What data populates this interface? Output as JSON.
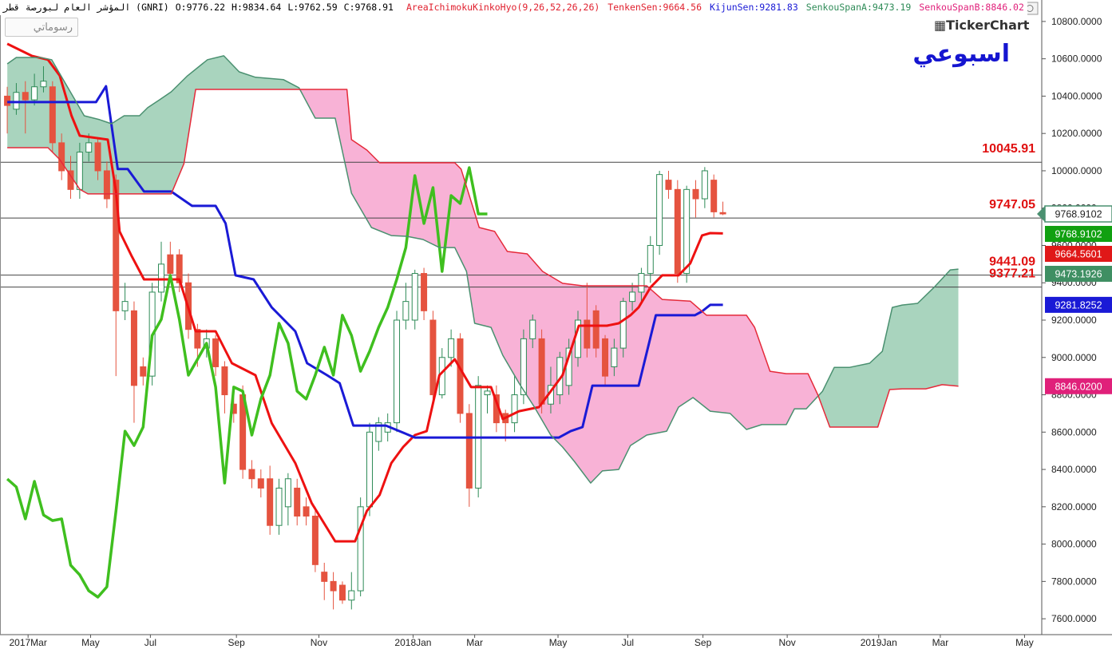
{
  "header": {
    "instrument": "المؤشر العام لبورصة قطر (GNRI)",
    "ohlc": [
      "O:9776.22",
      "H:9834.64",
      "L:9762.59",
      "C:9768.91"
    ],
    "indicators": [
      {
        "text": "AreaIchimokuKinkoHyo(9,26,52,26,26)",
        "color": "#e0202e"
      },
      {
        "text": "TenkenSen:9664.56",
        "color": "#e0202e"
      },
      {
        "text": "KijunSen:9281.83",
        "color": "#1a1ad6"
      },
      {
        "text": "SenkouSpanA:9473.19",
        "color": "#2e8b57"
      },
      {
        "text": "SenkouSpanB:8846.02",
        "color": "#e0207a"
      }
    ],
    "drawings_button": "رسوماتي",
    "logo": "TickerChart",
    "period": "اسبوعي"
  },
  "chart_data": {
    "type": "candlestick",
    "up_color": "#2e8b57",
    "down_color": "#e5533f",
    "candles": {
      "open": [
        10400,
        10330,
        10420,
        10380,
        10450,
        10450,
        10150,
        10000,
        9900,
        10100,
        10150,
        10000,
        9950,
        9250,
        9250,
        8950,
        8900,
        9350,
        9550,
        9550,
        9400,
        9150,
        9050,
        9100,
        8950,
        8750,
        8800,
        8400,
        8350,
        8350,
        8100,
        8200,
        8300,
        8200,
        8150,
        7850,
        7800,
        7780,
        7700,
        7750,
        8200,
        8550,
        8600,
        8650,
        9200,
        9200,
        9450,
        9200,
        8800,
        9000,
        9100,
        8700,
        8300,
        8800,
        8800,
        8700,
        8650,
        8800,
        9100,
        9100,
        8750,
        8800,
        8850,
        9000,
        9200,
        9250,
        9100,
        8950,
        9050,
        9300,
        9350,
        9450,
        9600,
        9950,
        9900,
        9450,
        9900,
        9850,
        9950,
        9776.22
      ],
      "high": [
        10450,
        10470,
        10480,
        10520,
        10560,
        10480,
        10200,
        10080,
        10150,
        10200,
        10180,
        10050,
        9980,
        9400,
        9300,
        9000,
        9400,
        9620,
        9620,
        9580,
        9450,
        9180,
        9150,
        9120,
        8980,
        8800,
        8850,
        8450,
        8400,
        8420,
        8350,
        8380,
        8350,
        8250,
        8200,
        7900,
        7850,
        7800,
        7850,
        8250,
        8650,
        8680,
        8700,
        9250,
        9400,
        9470,
        9480,
        9250,
        9050,
        9150,
        9130,
        8750,
        8900,
        8850,
        8850,
        8720,
        8900,
        9150,
        9230,
        9150,
        8950,
        9030,
        9100,
        9250,
        9400,
        9280,
        9120,
        9100,
        9320,
        9400,
        9480,
        9650,
        10000,
        10000,
        9950,
        9920,
        9950,
        10020,
        9980,
        9834.64
      ],
      "low": [
        10200,
        10300,
        10200,
        10350,
        10420,
        10100,
        9950,
        9850,
        9850,
        10050,
        9950,
        9800,
        8900,
        9200,
        8650,
        8850,
        8850,
        9300,
        9420,
        9350,
        9100,
        8950,
        9000,
        8900,
        8700,
        8650,
        8350,
        8300,
        8250,
        8050,
        8050,
        8100,
        8100,
        8100,
        7850,
        7700,
        7650,
        7680,
        7650,
        7720,
        8150,
        8500,
        8550,
        8600,
        9150,
        9150,
        9200,
        8750,
        8780,
        8950,
        8650,
        8200,
        8250,
        8700,
        8600,
        8550,
        8600,
        8750,
        9050,
        8700,
        8700,
        8750,
        8800,
        8950,
        9000,
        9000,
        8850,
        8900,
        9000,
        9250,
        9300,
        9400,
        9550,
        9850,
        9400,
        9400,
        9750,
        9800,
        9750,
        9762.59
      ],
      "close": [
        10350,
        10420,
        10380,
        10450,
        10480,
        10150,
        10000,
        9900,
        10100,
        10150,
        10000,
        9850,
        9250,
        9300,
        8850,
        8900,
        9350,
        9500,
        9450,
        9400,
        9150,
        9050,
        9100,
        8950,
        8800,
        8700,
        8400,
        8350,
        8300,
        8100,
        8300,
        8350,
        8150,
        8150,
        7890,
        7800,
        7750,
        7700,
        7750,
        8200,
        8600,
        8650,
        8650,
        9200,
        9300,
        9450,
        9250,
        8800,
        9000,
        9100,
        8700,
        8300,
        8850,
        8820,
        8650,
        8650,
        8800,
        9100,
        9200,
        8750,
        8850,
        9000,
        9050,
        9200,
        9050,
        9050,
        8900,
        9050,
        9300,
        9350,
        9450,
        9600,
        9980,
        9900,
        9450,
        9900,
        9850,
        10000,
        9780,
        9768.91
      ]
    },
    "lines": [
      {
        "color": "#ee1111",
        "x": [
          0,
          2.7,
          4.5,
          5.8,
          7.1,
          8,
          11.1,
          12,
          12.4,
          13.7,
          15.1,
          19,
          20.8,
          23,
          24.8,
          27.4,
          29.2,
          31.8,
          33.6,
          36.2,
          38.4,
          39.7,
          41.1,
          42.4,
          43.7,
          45,
          46.3,
          47.7,
          49.4,
          51.2,
          53.4,
          54.7,
          56.5,
          58.7,
          60,
          61.3,
          63.1,
          66.2,
          67.5,
          68.8,
          69.7,
          71,
          72.3,
          74.1,
          75.4,
          76.7,
          77.6,
          79
        ],
        "values": [
          10680,
          10616,
          10595,
          10509,
          10295,
          10188,
          10167,
          9889,
          9675,
          9547,
          9418,
          9418,
          9140,
          9140,
          8969,
          8905,
          8648,
          8434,
          8220,
          8015,
          8015,
          8178,
          8263,
          8434,
          8520,
          8584,
          8605,
          8905,
          8990,
          8841,
          8841,
          8670,
          8712,
          8734,
          8819,
          8905,
          9170,
          9170,
          9183,
          9226,
          9268,
          9375,
          9440,
          9440,
          9504,
          9654,
          9666,
          9664.56
        ]
      },
      {
        "color": "#1a1ad6",
        "x": [
          0,
          9.8,
          10.9,
          12.2,
          13.3,
          15.1,
          18.1,
          20.4,
          23,
          24.1,
          25.2,
          27.2,
          29.2,
          31.8,
          33.1,
          35.3,
          36.7,
          38.2,
          41.8,
          45,
          60.9,
          62.2,
          63.5,
          64.6,
          69.7,
          71.6,
          75.9,
          76.7,
          77.6,
          79
        ],
        "values": [
          10368,
          10368,
          10453,
          10009,
          10009,
          9889,
          9889,
          9812,
          9812,
          9718,
          9440,
          9418,
          9268,
          9140,
          8969,
          8905,
          8862,
          8635,
          8635,
          8571,
          8571,
          8605,
          8627,
          8849,
          8849,
          9226,
          9226,
          9247,
          9281.83,
          9281.83
        ]
      },
      {
        "color": "#3fbf1f",
        "x": [
          0,
          1,
          2,
          3,
          4,
          5,
          6,
          7,
          8,
          9,
          10,
          11,
          12,
          13,
          14,
          15,
          16,
          17,
          18,
          19,
          20,
          21,
          22,
          23,
          24,
          25,
          26,
          27,
          28,
          29,
          30,
          31,
          32,
          33,
          34,
          35,
          36,
          37,
          38,
          39,
          40,
          41,
          42,
          43,
          44,
          45,
          46,
          47,
          48,
          49,
          50,
          51,
          52,
          53
        ],
        "values": [
          8349,
          8306,
          8135,
          8336,
          8156,
          8126,
          8135,
          7887,
          7835,
          7750,
          7716,
          7771,
          8178,
          8605,
          8528,
          8627,
          9118,
          9204,
          9440,
          9204,
          8905,
          8990,
          9076,
          8841,
          8327,
          8841,
          8819,
          8584,
          8777,
          8905,
          9183,
          9076,
          8819,
          8777,
          8905,
          9055,
          8905,
          9226,
          9118,
          8926,
          9033,
          9161,
          9268,
          9418,
          9589,
          9974,
          9718,
          9910,
          9461,
          9867,
          9825,
          10017,
          9769,
          9768.91
        ]
      },
      {
        "color": "#4a9070",
        "x": [
          0,
          1,
          3.6,
          4.9,
          6.7,
          8.5,
          10.2,
          11.5,
          12.9,
          14.6,
          15.5,
          16.8,
          18.1,
          19.9,
          22.1,
          23.9,
          25.6,
          27.4,
          30.5,
          32.2,
          34,
          36.2,
          38,
          40.2,
          42.4,
          44.1,
          45.9,
          47.7,
          49.4,
          50.7,
          51.6,
          53.4,
          54.7,
          56.5,
          58.2,
          60,
          61.3,
          62.6,
          64.4,
          65.7,
          67.5,
          68.8,
          70.6,
          72.8,
          74.1,
          75.7,
          77.6,
          79.8,
          81.6,
          83.3,
          86,
          86.9,
          88.2,
          90,
          91.3,
          93,
          95.2,
          96.6,
          97.7,
          98.8,
          100.5,
          102.3,
          104.1,
          105
        ],
        "values": [
          10573,
          10607,
          10607,
          10595,
          10445,
          10295,
          10274,
          10252,
          10295,
          10295,
          10338,
          10380,
          10423,
          10509,
          10595,
          10616,
          10530,
          10501,
          10488,
          10445,
          10282,
          10282,
          9880,
          9696,
          9653,
          9649,
          9632,
          9589,
          9589,
          9461,
          9183,
          9161,
          9012,
          8862,
          8734,
          8584,
          8520,
          8443,
          8327,
          8392,
          8400,
          8528,
          8584,
          8605,
          8734,
          8785,
          8712,
          8700,
          8614,
          8640,
          8640,
          8725,
          8725,
          8819,
          8947,
          8947,
          8969,
          9033,
          9268,
          9281,
          9290,
          9375,
          9469,
          9473.19
        ]
      },
      {
        "color": "#e52a3a",
        "x": [
          0,
          4.5,
          5.8,
          8,
          8.9,
          18.1,
          19.5,
          20.8,
          37.5,
          38,
          39.7,
          41.1,
          49.4,
          50.1,
          52.1,
          53.8,
          55.2,
          57.4,
          59.1,
          61.3,
          63.5,
          70.6,
          72.3,
          75.4,
          77.2,
          81.6,
          82.5,
          84.2,
          86,
          88.4,
          89.5,
          90.8,
          96.1,
          97.4,
          98.8,
          101.4,
          103.2,
          105
        ],
        "values": [
          10124,
          10124,
          10060,
          9901,
          9876,
          9876,
          10038,
          10436,
          10436,
          10167,
          10111,
          10043,
          10043,
          10009,
          9696,
          9675,
          9568,
          9555,
          9461,
          9397,
          9384,
          9384,
          9311,
          9302,
          9226,
          9226,
          9161,
          8926,
          8913,
          8913,
          8798,
          8627,
          8627,
          8828,
          8832,
          8832,
          8854,
          8846.02
        ]
      }
    ],
    "cloud_up_color": "#a9d4be",
    "cloud_down_color": "#f8b2d6",
    "levels": [
      10045.91,
      9747.05,
      9441.09,
      9377.21
    ],
    "level_color": "#e01010",
    "price_tags": [
      {
        "value": 9768.9102,
        "label": "9768.9102",
        "color": "#4a9070",
        "style": "outline"
      },
      {
        "value": 9768.9102,
        "label": "9768.9102",
        "color": "#10a010"
      },
      {
        "value": 9664.5601,
        "label": "9664.5601",
        "color": "#e01818"
      },
      {
        "value": 9473.1926,
        "label": "9473.1926",
        "color": "#3f8f63"
      },
      {
        "value": 9281.8252,
        "label": "9281.8252",
        "color": "#1a1ad6"
      },
      {
        "value": 8846.02,
        "label": "8846.0200",
        "color": "#e0207a"
      }
    ],
    "ylim": [
      7515,
      10915
    ],
    "yticks": [
      {
        "value": 7600,
        "label": "7600.0000"
      },
      {
        "value": 7800,
        "label": "7800.0000"
      },
      {
        "value": 8000,
        "label": "8000.0000"
      },
      {
        "value": 8200,
        "label": "8200.0000"
      },
      {
        "value": 8400,
        "label": "8400.0000"
      },
      {
        "value": 8600,
        "label": "8600.0000"
      },
      {
        "value": 8800,
        "label": "8800.0000"
      },
      {
        "value": 9000,
        "label": "9000.0000"
      },
      {
        "value": 9200,
        "label": "9200.0000"
      },
      {
        "value": 9400,
        "label": "9400.0000"
      },
      {
        "value": 9600,
        "label": "9600.0000"
      },
      {
        "value": 9800,
        "label": "9800.0000"
      },
      {
        "value": 10000,
        "label": "10000.0000"
      },
      {
        "value": 10200,
        "label": "10200.0000"
      },
      {
        "value": 10400,
        "label": "10400.0000"
      },
      {
        "value": 10600,
        "label": "10600.0000"
      },
      {
        "value": 10800,
        "label": "10800.0000"
      }
    ],
    "xlim": [
      -0.8,
      114.2
    ],
    "xticks": [
      {
        "value": 2.3,
        "label": "2017Mar"
      },
      {
        "value": 9.2,
        "label": "May"
      },
      {
        "value": 15.8,
        "label": "Jul"
      },
      {
        "value": 25.3,
        "label": "Sep"
      },
      {
        "value": 34.4,
        "label": "Nov"
      },
      {
        "value": 44.8,
        "label": "2018Jan"
      },
      {
        "value": 51.6,
        "label": "Mar"
      },
      {
        "value": 60.8,
        "label": "May"
      },
      {
        "value": 68.5,
        "label": "Jul"
      },
      {
        "value": 76.8,
        "label": "Sep"
      },
      {
        "value": 86.1,
        "label": "Nov"
      },
      {
        "value": 96.2,
        "label": "2019Jan"
      },
      {
        "value": 103,
        "label": "Mar"
      },
      {
        "value": 112.3,
        "label": "May"
      }
    ]
  }
}
